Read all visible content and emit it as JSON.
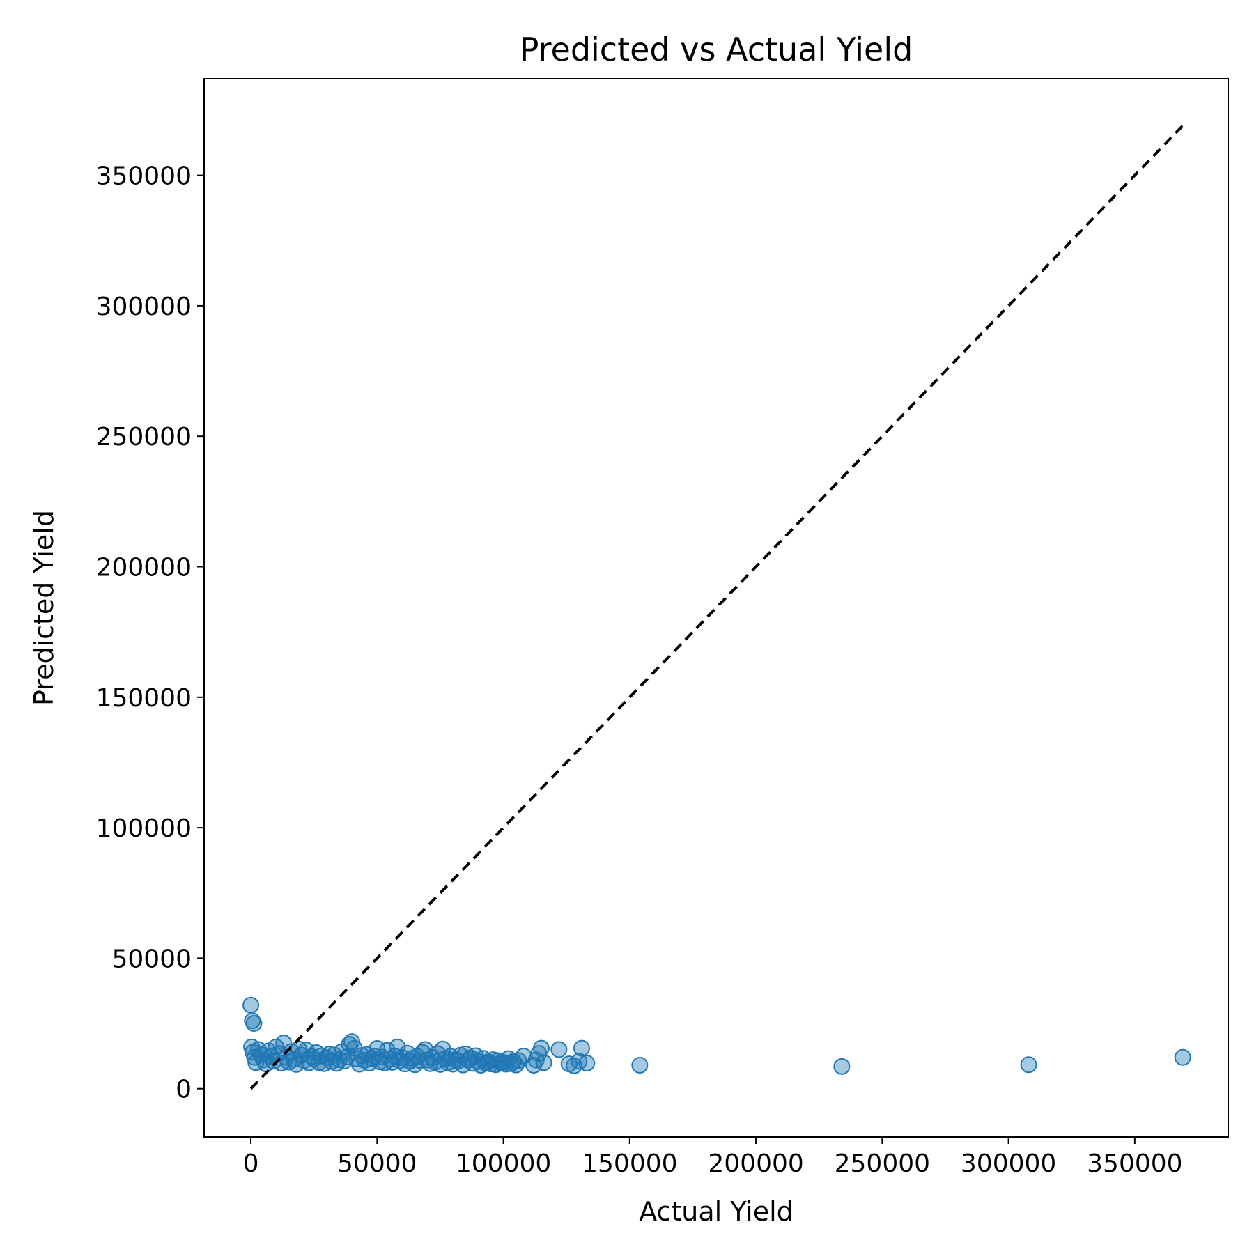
{
  "chart_data": {
    "type": "scatter",
    "title": "Predicted vs Actual Yield",
    "xlabel": "Actual Yield",
    "ylabel": "Predicted Yield",
    "xlim": [
      -18500,
      387000
    ],
    "ylim": [
      -18500,
      387000
    ],
    "xticks": [
      0,
      50000,
      100000,
      150000,
      200000,
      250000,
      300000,
      350000
    ],
    "yticks": [
      0,
      50000,
      100000,
      150000,
      200000,
      250000,
      300000,
      350000
    ],
    "grid": false,
    "legend": "none",
    "point_color": "#1f77b4",
    "reference_line": {
      "style": "dashed",
      "color": "#000000",
      "from": [
        0,
        0
      ],
      "to": [
        369000,
        369000
      ]
    },
    "series": [
      {
        "points": [
          [
            0,
            32000
          ],
          [
            600,
            26000
          ],
          [
            1200,
            25000
          ],
          [
            300,
            16000
          ],
          [
            800,
            14000
          ],
          [
            1500,
            12000
          ],
          [
            2000,
            10000
          ],
          [
            3000,
            15000
          ],
          [
            4000,
            13000
          ],
          [
            5000,
            11000
          ],
          [
            6000,
            9500
          ],
          [
            7000,
            14500
          ],
          [
            8000,
            12500
          ],
          [
            9000,
            10500
          ],
          [
            10000,
            16000
          ],
          [
            11000,
            13500
          ],
          [
            12000,
            9800
          ],
          [
            13000,
            17500
          ],
          [
            14000,
            12000
          ],
          [
            15000,
            10200
          ],
          [
            16000,
            14200
          ],
          [
            17000,
            11200
          ],
          [
            18000,
            9300
          ],
          [
            19000,
            15200
          ],
          [
            20000,
            12800
          ],
          [
            21000,
            10800
          ],
          [
            22000,
            14800
          ],
          [
            23000,
            9900
          ],
          [
            24000,
            12300
          ],
          [
            25000,
            11500
          ],
          [
            26000,
            13800
          ],
          [
            27000,
            10000
          ],
          [
            28000,
            12600
          ],
          [
            29000,
            9600
          ],
          [
            30000,
            11800
          ],
          [
            31000,
            13200
          ],
          [
            32000,
            10400
          ],
          [
            33000,
            12900
          ],
          [
            34000,
            9700
          ],
          [
            35000,
            11100
          ],
          [
            36000,
            14100
          ],
          [
            37000,
            10600
          ],
          [
            38000,
            12200
          ],
          [
            39000,
            17000
          ],
          [
            40000,
            18000
          ],
          [
            41000,
            15500
          ],
          [
            42000,
            11400
          ],
          [
            43000,
            9400
          ],
          [
            44000,
            12700
          ],
          [
            45000,
            10900
          ],
          [
            46000,
            13100
          ],
          [
            47000,
            9800
          ],
          [
            48000,
            11600
          ],
          [
            49000,
            12400
          ],
          [
            50000,
            15400
          ],
          [
            51000,
            10300
          ],
          [
            52000,
            12100
          ],
          [
            53000,
            9900
          ],
          [
            54000,
            14700
          ],
          [
            55000,
            11300
          ],
          [
            56000,
            10100
          ],
          [
            57000,
            12500
          ],
          [
            58000,
            16000
          ],
          [
            59000,
            10700
          ],
          [
            60000,
            11900
          ],
          [
            61000,
            9500
          ],
          [
            62000,
            13600
          ],
          [
            63000,
            10500
          ],
          [
            64000,
            11700
          ],
          [
            65000,
            9200
          ],
          [
            66000,
            12300
          ],
          [
            67000,
            10800
          ],
          [
            68000,
            13900
          ],
          [
            69000,
            15000
          ],
          [
            70000,
            11000
          ],
          [
            71000,
            9600
          ],
          [
            72000,
            12000
          ],
          [
            73000,
            10200
          ],
          [
            74000,
            13400
          ],
          [
            75000,
            9300
          ],
          [
            76000,
            15200
          ],
          [
            77000,
            11500
          ],
          [
            78000,
            10000
          ],
          [
            79000,
            12400
          ],
          [
            80000,
            9400
          ],
          [
            81000,
            11200
          ],
          [
            82000,
            10600
          ],
          [
            83000,
            12800
          ],
          [
            84000,
            9100
          ],
          [
            85000,
            13300
          ],
          [
            86000,
            10900
          ],
          [
            87000,
            11800
          ],
          [
            88000,
            9700
          ],
          [
            89000,
            12600
          ],
          [
            90000,
            10400
          ],
          [
            91000,
            9000
          ],
          [
            92000,
            11600
          ],
          [
            93000,
            9800
          ],
          [
            94000,
            10300
          ],
          [
            95000,
            9500
          ],
          [
            96000,
            11100
          ],
          [
            97000,
            9200
          ],
          [
            98000,
            10700
          ],
          [
            99000,
            9900
          ],
          [
            100000,
            10100
          ],
          [
            101000,
            9400
          ],
          [
            102000,
            11500
          ],
          [
            103000,
            9600
          ],
          [
            104000,
            10400
          ],
          [
            105000,
            9100
          ],
          [
            106000,
            10800
          ],
          [
            108000,
            12500
          ],
          [
            112000,
            9000
          ],
          [
            113000,
            11000
          ],
          [
            114000,
            13500
          ],
          [
            115000,
            15500
          ],
          [
            116000,
            10000
          ],
          [
            122000,
            15000
          ],
          [
            126000,
            9500
          ],
          [
            128000,
            8800
          ],
          [
            130000,
            10500
          ],
          [
            131000,
            15500
          ],
          [
            133000,
            9800
          ],
          [
            154000,
            9000
          ],
          [
            234000,
            8500
          ],
          [
            308000,
            9200
          ],
          [
            369000,
            12000
          ]
        ]
      }
    ]
  }
}
